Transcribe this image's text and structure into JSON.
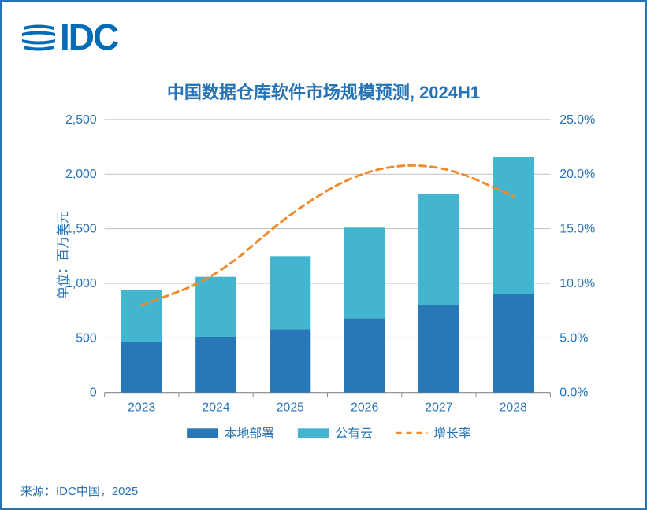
{
  "logo": {
    "text": "IDC",
    "color": "#006cb7"
  },
  "title": "中国数据仓库软件市场规模预测, 2024H1",
  "yAxisLeftLabel": "单位：百万美元",
  "footer": "来源：IDC中国，2025",
  "chart": {
    "type": "stacked-bar-with-line",
    "categories": [
      "2023",
      "2024",
      "2025",
      "2026",
      "2027",
      "2028"
    ],
    "series": [
      {
        "name": "本地部署",
        "color": "#2877b6",
        "values": [
          460,
          510,
          580,
          680,
          800,
          900
        ]
      },
      {
        "name": "公有云",
        "color": "#43b5cf",
        "values": [
          480,
          550,
          670,
          830,
          1020,
          1260
        ]
      }
    ],
    "line": {
      "name": "增长率",
      "color": "#f08b2c",
      "values": [
        8.0,
        10.5,
        16.5,
        20.5,
        21.0,
        18.0
      ],
      "dash": "8 6",
      "width": 3
    },
    "yLeft": {
      "min": 0,
      "max": 2500,
      "step": 500,
      "ticks": [
        0,
        500,
        1000,
        1500,
        2000,
        2500
      ]
    },
    "yRight": {
      "min": 0,
      "max": 25,
      "step": 5,
      "ticks": [
        0,
        5,
        10,
        15,
        20,
        25
      ],
      "suffix": "%",
      "decimals": 1
    },
    "colors": {
      "axisText": "#2673b8",
      "gridline": "#bfbfbf",
      "baseline": "#8a8a8a"
    },
    "fontSizes": {
      "tick": 16,
      "legend": 16
    },
    "bar": {
      "groupWidth": 0.55
    },
    "legend": {
      "items": [
        {
          "kind": "box",
          "label": "本地部署",
          "color": "#2877b6"
        },
        {
          "kind": "box",
          "label": "公有云",
          "color": "#43b5cf"
        },
        {
          "kind": "dash",
          "label": "增长率",
          "color": "#f08b2c"
        }
      ]
    }
  }
}
